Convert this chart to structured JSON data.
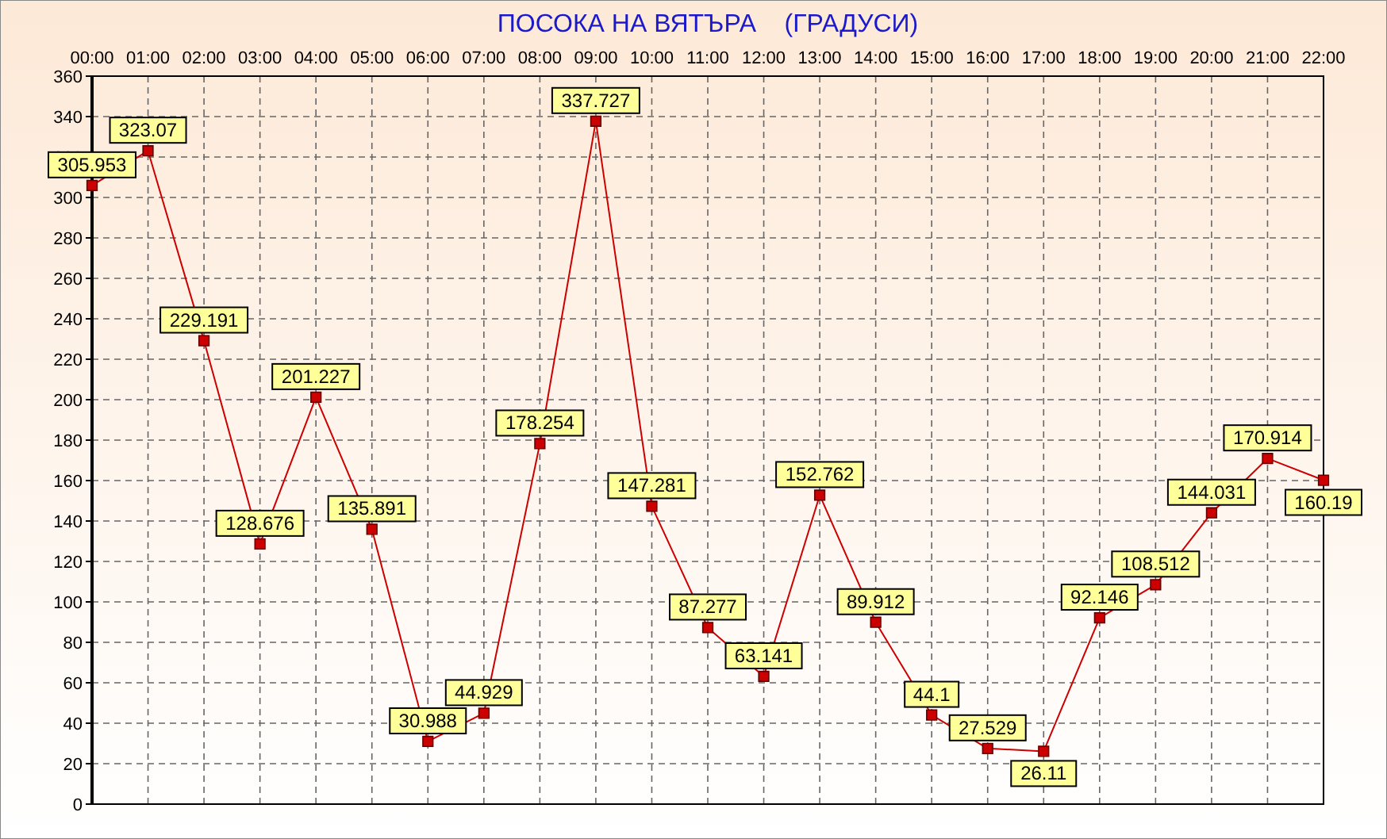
{
  "chart_data": {
    "type": "line",
    "title": "ПОСОКА НА ВЯТЪРА    (ГРАДУСИ)",
    "categories": [
      "00:00",
      "01:00",
      "02:00",
      "03:00",
      "04:00",
      "05:00",
      "06:00",
      "07:00",
      "08:00",
      "09:00",
      "10:00",
      "11:00",
      "12:00",
      "13:00",
      "14:00",
      "15:00",
      "16:00",
      "17:00",
      "18:00",
      "19:00",
      "20:00",
      "21:00",
      "22:00"
    ],
    "series": [
      {
        "color": "#cc0000",
        "values": [
          305.953,
          323.07,
          229.191,
          128.676,
          201.227,
          135.891,
          30.988,
          44.929,
          178.254,
          337.727,
          147.281,
          87.277,
          63.141,
          152.762,
          89.912,
          44.1,
          27.529,
          26.11,
          92.146,
          108.512,
          144.031,
          170.914,
          160.19
        ]
      }
    ],
    "ylim": [
      0,
      360
    ],
    "yticks": [
      0,
      20,
      40,
      60,
      80,
      100,
      120,
      140,
      160,
      180,
      200,
      220,
      240,
      260,
      280,
      300,
      320,
      340,
      360
    ],
    "grid": true,
    "data_labels": true,
    "marker": "square"
  }
}
